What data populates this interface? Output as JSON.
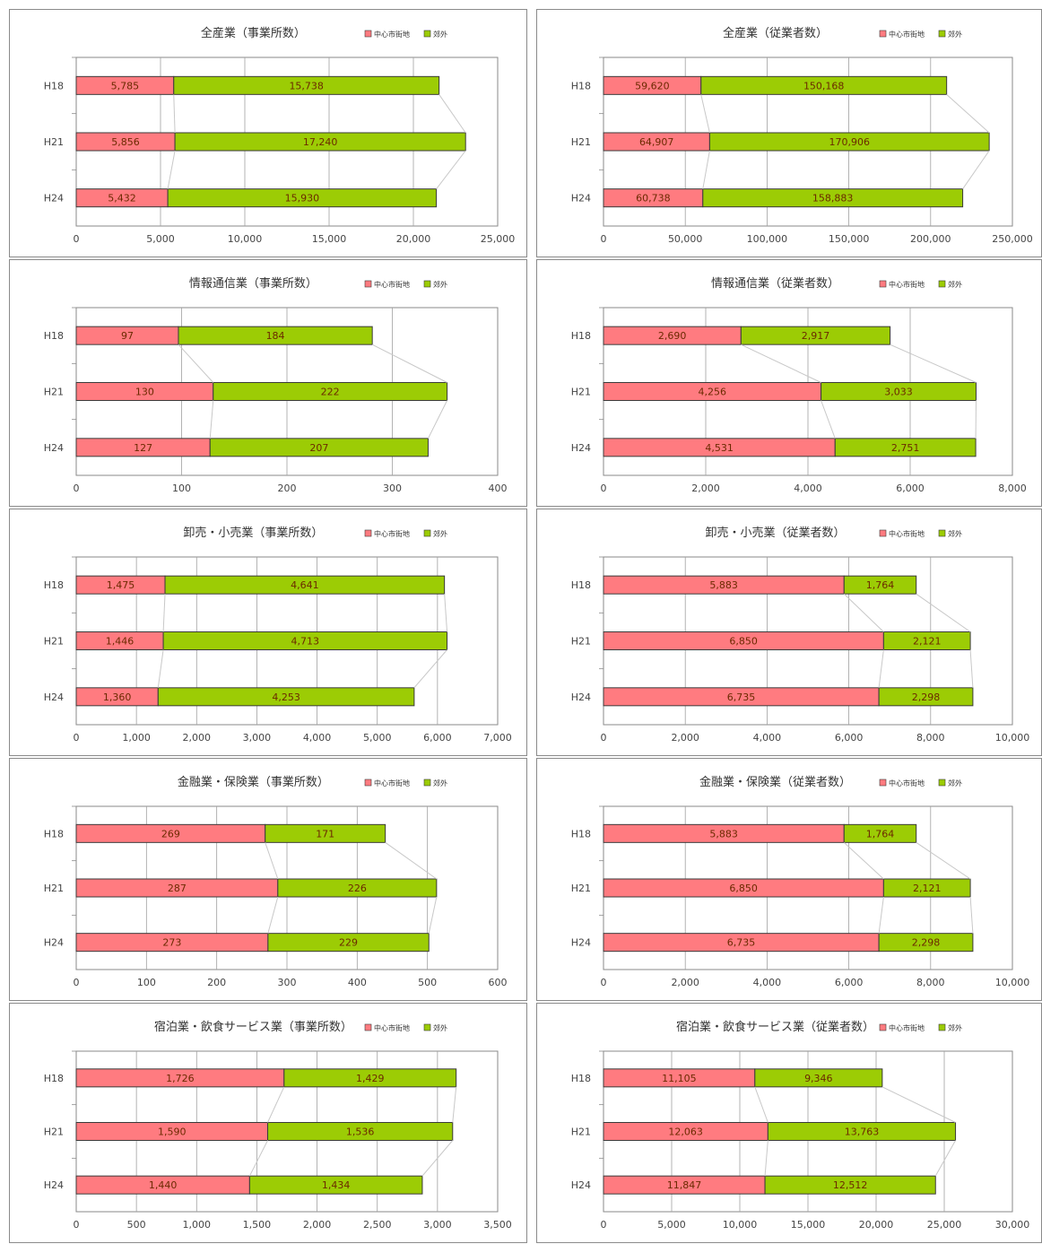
{
  "legend": {
    "inner": "中心市街地",
    "outer": "郊外"
  },
  "colors": {
    "inner": "#ff7b80",
    "outer": "#9ccc05",
    "outline": "#3a3a3a",
    "grid": "#a0a0a0",
    "connector": "#c8c8c8"
  },
  "chart_data": [
    {
      "type": "bar",
      "stacked": true,
      "orientation": "horizontal",
      "title": "全産業（事業所数）",
      "categories": [
        "H18",
        "H21",
        "H24"
      ],
      "series": [
        {
          "name": "中心市街地",
          "values": [
            5785,
            5856,
            5432
          ]
        },
        {
          "name": "郊外",
          "values": [
            15738,
            17240,
            15930
          ]
        }
      ],
      "xlim": [
        0,
        25000
      ],
      "xticks": [
        0,
        5000,
        10000,
        15000,
        20000,
        25000
      ],
      "xtick_labels": [
        "0",
        "5,000",
        "10,000",
        "15,000",
        "20,000",
        "25,000"
      ],
      "value_labels": {
        "inner": [
          "5,785",
          "5,856",
          "5,432"
        ],
        "outer": [
          "15,738",
          "17,240",
          "15,930"
        ]
      },
      "grid": true,
      "legend_position": "top-right"
    },
    {
      "type": "bar",
      "stacked": true,
      "orientation": "horizontal",
      "title": "全産業（従業者数）",
      "categories": [
        "H18",
        "H21",
        "H24"
      ],
      "series": [
        {
          "name": "中心市街地",
          "values": [
            59620,
            64907,
            60738
          ]
        },
        {
          "name": "郊外",
          "values": [
            150168,
            170906,
            158883
          ]
        }
      ],
      "xlim": [
        0,
        250000
      ],
      "xticks": [
        0,
        50000,
        100000,
        150000,
        200000,
        250000
      ],
      "xtick_labels": [
        "0",
        "50,000",
        "100,000",
        "150,000",
        "200,000",
        "250,000"
      ],
      "value_labels": {
        "inner": [
          "59,620",
          "64,907",
          "60,738"
        ],
        "outer": [
          "150,168",
          "170,906",
          "158,883"
        ]
      },
      "grid": true,
      "legend_position": "top-right"
    },
    {
      "type": "bar",
      "stacked": true,
      "orientation": "horizontal",
      "title": "情報通信業（事業所数）",
      "categories": [
        "H18",
        "H21",
        "H24"
      ],
      "series": [
        {
          "name": "中心市街地",
          "values": [
            97,
            130,
            127
          ]
        },
        {
          "name": "郊外",
          "values": [
            184,
            222,
            207
          ]
        }
      ],
      "xlim": [
        0,
        400
      ],
      "xticks": [
        0,
        100,
        200,
        300,
        400
      ],
      "xtick_labels": [
        "0",
        "100",
        "200",
        "300",
        "400"
      ],
      "value_labels": {
        "inner": [
          "97",
          "130",
          "127"
        ],
        "outer": [
          "184",
          "222",
          "207"
        ]
      },
      "grid": true,
      "legend_position": "top-right"
    },
    {
      "type": "bar",
      "stacked": true,
      "orientation": "horizontal",
      "title": "情報通信業（従業者数）",
      "categories": [
        "H18",
        "H21",
        "H24"
      ],
      "series": [
        {
          "name": "中心市街地",
          "values": [
            2690,
            4256,
            4531
          ]
        },
        {
          "name": "郊外",
          "values": [
            2917,
            3033,
            2751
          ]
        }
      ],
      "xlim": [
        0,
        8000
      ],
      "xticks": [
        0,
        2000,
        4000,
        6000,
        8000
      ],
      "xtick_labels": [
        "0",
        "2,000",
        "4,000",
        "6,000",
        "8,000"
      ],
      "value_labels": {
        "inner": [
          "2,690",
          "4,256",
          "4,531"
        ],
        "outer": [
          "2,917",
          "3,033",
          "2,751"
        ]
      },
      "grid": true,
      "legend_position": "top-right"
    },
    {
      "type": "bar",
      "stacked": true,
      "orientation": "horizontal",
      "title": "卸売・小売業（事業所数）",
      "categories": [
        "H18",
        "H21",
        "H24"
      ],
      "series": [
        {
          "name": "中心市街地",
          "values": [
            1475,
            1446,
            1360
          ]
        },
        {
          "name": "郊外",
          "values": [
            4641,
            4713,
            4253
          ]
        }
      ],
      "xlim": [
        0,
        7000
      ],
      "xticks": [
        0,
        1000,
        2000,
        3000,
        4000,
        5000,
        6000,
        7000
      ],
      "xtick_labels": [
        "0",
        "1,000",
        "2,000",
        "3,000",
        "4,000",
        "5,000",
        "6,000",
        "7,000"
      ],
      "value_labels": {
        "inner": [
          "1,475",
          "1,446",
          "1,360"
        ],
        "outer": [
          "4,641",
          "4,713",
          "4,253"
        ]
      },
      "grid": true,
      "legend_position": "top-right"
    },
    {
      "type": "bar",
      "stacked": true,
      "orientation": "horizontal",
      "title": "卸売・小売業（従業者数）",
      "categories": [
        "H18",
        "H21",
        "H24"
      ],
      "series": [
        {
          "name": "中心市街地",
          "values": [
            5883,
            6850,
            6735
          ]
        },
        {
          "name": "郊外",
          "values": [
            1764,
            2121,
            2298
          ]
        }
      ],
      "xlim": [
        0,
        10000
      ],
      "xticks": [
        0,
        2000,
        4000,
        6000,
        8000,
        10000
      ],
      "xtick_labels": [
        "0",
        "2,000",
        "4,000",
        "6,000",
        "8,000",
        "10,000"
      ],
      "value_labels": {
        "inner": [
          "5,883",
          "6,850",
          "6,735"
        ],
        "outer": [
          "1,764",
          "2,121",
          "2,298"
        ]
      },
      "grid": true,
      "legend_position": "top-right"
    },
    {
      "type": "bar",
      "stacked": true,
      "orientation": "horizontal",
      "title": "金融業・保険業（事業所数）",
      "categories": [
        "H18",
        "H21",
        "H24"
      ],
      "series": [
        {
          "name": "中心市街地",
          "values": [
            269,
            287,
            273
          ]
        },
        {
          "name": "郊外",
          "values": [
            171,
            226,
            229
          ]
        }
      ],
      "xlim": [
        0,
        600
      ],
      "xticks": [
        0,
        100,
        200,
        300,
        400,
        500,
        600
      ],
      "xtick_labels": [
        "0",
        "100",
        "200",
        "300",
        "400",
        "500",
        "600"
      ],
      "value_labels": {
        "inner": [
          "269",
          "287",
          "273"
        ],
        "outer": [
          "171",
          "226",
          "229"
        ]
      },
      "grid": true,
      "legend_position": "top-right"
    },
    {
      "type": "bar",
      "stacked": true,
      "orientation": "horizontal",
      "title": "金融業・保険業（従業者数）",
      "categories": [
        "H18",
        "H21",
        "H24"
      ],
      "series": [
        {
          "name": "中心市街地",
          "values": [
            5883,
            6850,
            6735
          ]
        },
        {
          "name": "郊外",
          "values": [
            1764,
            2121,
            2298
          ]
        }
      ],
      "xlim": [
        0,
        10000
      ],
      "xticks": [
        0,
        2000,
        4000,
        6000,
        8000,
        10000
      ],
      "xtick_labels": [
        "0",
        "2,000",
        "4,000",
        "6,000",
        "8,000",
        "10,000"
      ],
      "value_labels": {
        "inner": [
          "5,883",
          "6,850",
          "6,735"
        ],
        "outer": [
          "1,764",
          "2,121",
          "2,298"
        ]
      },
      "grid": true,
      "legend_position": "top-right"
    },
    {
      "type": "bar",
      "stacked": true,
      "orientation": "horizontal",
      "title": "宿泊業・飲食サービス業（事業所数）",
      "categories": [
        "H18",
        "H21",
        "H24"
      ],
      "series": [
        {
          "name": "中心市街地",
          "values": [
            1726,
            1590,
            1440
          ]
        },
        {
          "name": "郊外",
          "values": [
            1429,
            1536,
            1434
          ]
        }
      ],
      "xlim": [
        0,
        3500
      ],
      "xticks": [
        0,
        500,
        1000,
        1500,
        2000,
        2500,
        3000,
        3500
      ],
      "xtick_labels": [
        "0",
        "500",
        "1,000",
        "1,500",
        "2,000",
        "2,500",
        "3,000",
        "3,500"
      ],
      "value_labels": {
        "inner": [
          "1,726",
          "1,590",
          "1,440"
        ],
        "outer": [
          "1,429",
          "1,536",
          "1,434"
        ]
      },
      "grid": true,
      "legend_position": "top-right"
    },
    {
      "type": "bar",
      "stacked": true,
      "orientation": "horizontal",
      "title": "宿泊業・飲食サービス業（従業者数）",
      "categories": [
        "H18",
        "H21",
        "H24"
      ],
      "series": [
        {
          "name": "中心市街地",
          "values": [
            11105,
            12063,
            11847
          ]
        },
        {
          "name": "郊外",
          "values": [
            9346,
            13763,
            12512
          ]
        }
      ],
      "xlim": [
        0,
        30000
      ],
      "xticks": [
        0,
        5000,
        10000,
        15000,
        20000,
        25000,
        30000
      ],
      "xtick_labels": [
        "0",
        "5,000",
        "10,000",
        "15,000",
        "20,000",
        "25,000",
        "30,000"
      ],
      "value_labels": {
        "inner": [
          "11,105",
          "12,063",
          "11,847"
        ],
        "outer": [
          "9,346",
          "13,763",
          "12,512"
        ]
      },
      "grid": true,
      "legend_position": "top-right"
    }
  ]
}
